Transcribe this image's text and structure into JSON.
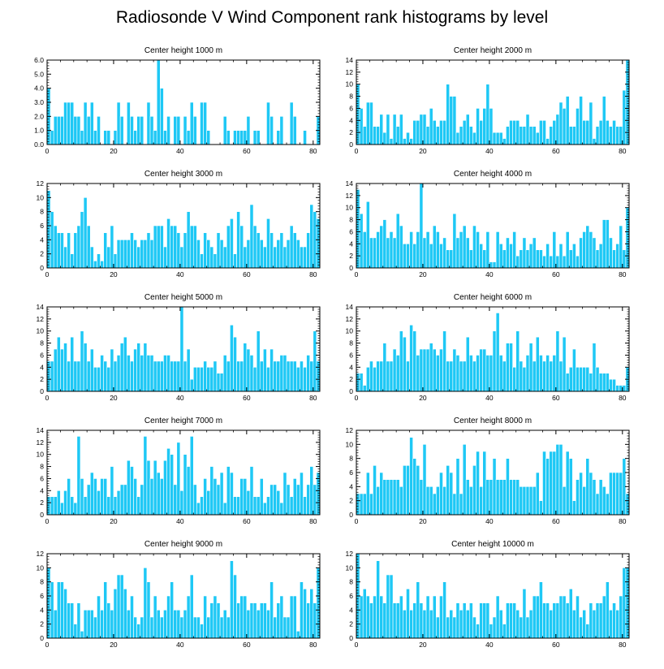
{
  "title": "Radiosonde V Wind Component rank histograms by level",
  "colors": {
    "bar": "#1ec8f5",
    "bar_stroke": "#ffffff",
    "axis": "#000000"
  },
  "chart_data": [
    {
      "type": "bar",
      "title": "Center height 1000 m",
      "xlim": [
        0,
        82
      ],
      "xticks": [
        0,
        20,
        40,
        60,
        80
      ],
      "ylim": [
        0,
        6
      ],
      "yticks": [
        0,
        1,
        2,
        3,
        4,
        5,
        6
      ],
      "ytick_labels": [
        "0.0",
        "1.0",
        "2.0",
        "3.0",
        "4.0",
        "5.0",
        "6.0"
      ],
      "values": [
        4,
        1,
        2,
        2,
        2,
        3,
        3,
        3,
        2,
        2,
        1,
        3,
        2,
        3,
        1,
        2,
        0,
        1,
        1,
        0,
        1,
        3,
        2,
        0,
        3,
        2,
        1,
        2,
        2,
        0,
        3,
        2,
        1,
        6,
        4,
        1,
        2,
        0,
        2,
        2,
        0,
        2,
        1,
        3,
        2,
        0,
        3,
        3,
        1,
        0,
        0,
        0,
        0,
        2,
        1,
        0,
        1,
        1,
        1,
        1,
        2,
        0,
        1,
        1,
        0,
        0,
        3,
        2,
        0,
        1,
        2,
        0,
        0,
        3,
        2,
        0,
        0,
        1,
        0,
        0,
        0,
        2
      ]
    },
    {
      "type": "bar",
      "title": "Center height 2000 m",
      "xlim": [
        0,
        82
      ],
      "xticks": [
        0,
        20,
        40,
        60,
        80
      ],
      "ylim": [
        0,
        14
      ],
      "yticks": [
        0,
        2,
        4,
        6,
        8,
        10,
        12,
        14
      ],
      "ytick_labels": [
        "0",
        "2",
        "4",
        "6",
        "8",
        "10",
        "12",
        "14"
      ],
      "values": [
        10,
        6,
        3,
        7,
        7,
        3,
        3,
        5,
        2,
        5,
        1,
        5,
        3,
        5,
        1,
        2,
        1,
        4,
        4,
        5,
        5,
        3,
        6,
        4,
        3,
        4,
        4,
        10,
        8,
        8,
        2,
        3,
        4,
        5,
        3,
        2,
        6,
        4,
        6,
        10,
        6,
        2,
        2,
        2,
        1,
        3,
        4,
        4,
        4,
        3,
        3,
        5,
        3,
        3,
        2,
        4,
        4,
        1,
        3,
        4,
        5,
        7,
        6,
        8,
        3,
        3,
        6,
        8,
        4,
        4,
        7,
        1,
        3,
        4,
        8,
        4,
        3,
        4,
        3,
        3,
        9,
        14
      ]
    },
    {
      "type": "bar",
      "title": "Center height 3000 m",
      "xlim": [
        0,
        82
      ],
      "xticks": [
        0,
        20,
        40,
        60,
        80
      ],
      "ylim": [
        0,
        12
      ],
      "yticks": [
        0,
        2,
        4,
        6,
        8,
        10,
        12
      ],
      "ytick_labels": [
        "0",
        "2",
        "4",
        "6",
        "8",
        "10",
        "12"
      ],
      "values": [
        11,
        8,
        6,
        5,
        5,
        3,
        5,
        2,
        5,
        6,
        8,
        10,
        6,
        3,
        1,
        2,
        1,
        5,
        3,
        6,
        2,
        4,
        4,
        4,
        4,
        5,
        4,
        3,
        4,
        4,
        5,
        4,
        6,
        6,
        6,
        3,
        7,
        6,
        6,
        5,
        3,
        5,
        8,
        6,
        6,
        4,
        2,
        5,
        4,
        3,
        2,
        5,
        4,
        3,
        6,
        7,
        2,
        8,
        6,
        3,
        4,
        9,
        6,
        5,
        4,
        3,
        7,
        5,
        3,
        4,
        5,
        3,
        4,
        6,
        5,
        4,
        3,
        3,
        5,
        9,
        8,
        7
      ]
    },
    {
      "type": "bar",
      "title": "Center height 4000 m",
      "xlim": [
        0,
        82
      ],
      "xticks": [
        0,
        20,
        40,
        60,
        80
      ],
      "ylim": [
        0,
        14
      ],
      "yticks": [
        0,
        2,
        4,
        6,
        8,
        10,
        12,
        14
      ],
      "ytick_labels": [
        "0",
        "2",
        "4",
        "6",
        "8",
        "10",
        "12",
        "14"
      ],
      "values": [
        13,
        9,
        6,
        11,
        5,
        5,
        6,
        7,
        8,
        5,
        6,
        5,
        9,
        7,
        4,
        4,
        6,
        4,
        6,
        14,
        5,
        6,
        4,
        7,
        6,
        4,
        5,
        3,
        3,
        9,
        5,
        6,
        7,
        5,
        3,
        7,
        6,
        4,
        3,
        6,
        1,
        1,
        6,
        4,
        3,
        5,
        4,
        6,
        2,
        3,
        5,
        3,
        4,
        5,
        3,
        3,
        2,
        4,
        2,
        6,
        2,
        4,
        2,
        6,
        3,
        4,
        2,
        5,
        6,
        7,
        6,
        5,
        3,
        4,
        8,
        8,
        5,
        3,
        4,
        7,
        3,
        10
      ]
    },
    {
      "type": "bar",
      "title": "Center height 5000 m",
      "xlim": [
        0,
        82
      ],
      "xticks": [
        0,
        20,
        40,
        60,
        80
      ],
      "ylim": [
        0,
        14
      ],
      "yticks": [
        0,
        2,
        4,
        6,
        8,
        10,
        12,
        14
      ],
      "ytick_labels": [
        "0",
        "2",
        "4",
        "6",
        "8",
        "10",
        "12",
        "14"
      ],
      "values": [
        5,
        5,
        7,
        9,
        7,
        8,
        5,
        9,
        5,
        5,
        10,
        8,
        5,
        7,
        4,
        4,
        6,
        5,
        4,
        7,
        5,
        6,
        8,
        9,
        6,
        5,
        7,
        8,
        6,
        8,
        6,
        6,
        5,
        5,
        5,
        6,
        6,
        5,
        5,
        5,
        14,
        5,
        7,
        2,
        4,
        4,
        4,
        5,
        4,
        4,
        5,
        3,
        3,
        6,
        5,
        11,
        9,
        5,
        5,
        8,
        7,
        6,
        4,
        10,
        5,
        7,
        4,
        7,
        5,
        5,
        6,
        6,
        5,
        5,
        5,
        4,
        5,
        4,
        6,
        5,
        10,
        5
      ]
    },
    {
      "type": "bar",
      "title": "Center height 6000 m",
      "xlim": [
        0,
        82
      ],
      "xticks": [
        0,
        20,
        40,
        60,
        80
      ],
      "ylim": [
        0,
        14
      ],
      "yticks": [
        0,
        2,
        4,
        6,
        8,
        10,
        12,
        14
      ],
      "ytick_labels": [
        "0",
        "2",
        "4",
        "6",
        "8",
        "10",
        "12",
        "14"
      ],
      "values": [
        3,
        3,
        1,
        4,
        5,
        4,
        5,
        5,
        8,
        5,
        5,
        7,
        6,
        10,
        9,
        5,
        11,
        10,
        6,
        7,
        7,
        7,
        8,
        7,
        6,
        7,
        10,
        5,
        5,
        7,
        6,
        5,
        5,
        9,
        6,
        5,
        6,
        7,
        7,
        6,
        6,
        10,
        13,
        6,
        5,
        8,
        8,
        4,
        10,
        5,
        4,
        6,
        8,
        5,
        9,
        6,
        5,
        6,
        5,
        6,
        10,
        5,
        9,
        3,
        4,
        7,
        4,
        4,
        4,
        4,
        3,
        8,
        4,
        3,
        3,
        3,
        2,
        2,
        1,
        1,
        1,
        4
      ]
    },
    {
      "type": "bar",
      "title": "Center height 7000 m",
      "xlim": [
        0,
        82
      ],
      "xticks": [
        0,
        20,
        40,
        60,
        80
      ],
      "ylim": [
        0,
        14
      ],
      "yticks": [
        0,
        2,
        4,
        6,
        8,
        10,
        12,
        14
      ],
      "ytick_labels": [
        "0",
        "2",
        "4",
        "6",
        "8",
        "10",
        "12",
        "14"
      ],
      "values": [
        3,
        3,
        3,
        4,
        2,
        4,
        6,
        3,
        2,
        13,
        6,
        3,
        5,
        7,
        6,
        4,
        6,
        6,
        3,
        8,
        3,
        4,
        5,
        5,
        9,
        8,
        6,
        3,
        5,
        13,
        9,
        6,
        9,
        7,
        6,
        9,
        11,
        10,
        5,
        12,
        4,
        10,
        8,
        13,
        5,
        2,
        3,
        6,
        4,
        8,
        6,
        5,
        7,
        2,
        8,
        7,
        3,
        3,
        6,
        6,
        4,
        8,
        3,
        3,
        6,
        2,
        3,
        5,
        5,
        4,
        2,
        7,
        5,
        3,
        6,
        5,
        7,
        3,
        5,
        8,
        5,
        7
      ]
    },
    {
      "type": "bar",
      "title": "Center height 8000 m",
      "xlim": [
        0,
        82
      ],
      "xticks": [
        0,
        20,
        40,
        60,
        80
      ],
      "ylim": [
        0,
        12
      ],
      "yticks": [
        0,
        2,
        4,
        6,
        8,
        10,
        12
      ],
      "ytick_labels": [
        "0",
        "2",
        "4",
        "6",
        "8",
        "10",
        "12"
      ],
      "values": [
        3,
        3,
        3,
        6,
        3,
        7,
        4,
        6,
        5,
        5,
        5,
        5,
        5,
        4,
        7,
        7,
        11,
        8,
        7,
        5,
        10,
        4,
        4,
        3,
        4,
        6,
        4,
        7,
        6,
        3,
        8,
        3,
        10,
        5,
        4,
        7,
        9,
        4,
        9,
        5,
        5,
        8,
        5,
        5,
        5,
        8,
        5,
        5,
        5,
        4,
        4,
        4,
        4,
        4,
        6,
        2,
        9,
        8,
        9,
        9,
        10,
        10,
        4,
        9,
        8,
        2,
        5,
        6,
        4,
        8,
        6,
        5,
        3,
        5,
        4,
        3,
        6,
        6,
        6,
        6,
        8,
        3
      ]
    },
    {
      "type": "bar",
      "title": "Center height 9000 m",
      "xlim": [
        0,
        82
      ],
      "xticks": [
        0,
        20,
        40,
        60,
        80
      ],
      "ylim": [
        0,
        12
      ],
      "yticks": [
        0,
        2,
        4,
        6,
        8,
        10,
        12
      ],
      "ytick_labels": [
        "0",
        "2",
        "4",
        "6",
        "8",
        "10",
        "12"
      ],
      "values": [
        10,
        8,
        4,
        8,
        8,
        7,
        5,
        5,
        2,
        5,
        1,
        4,
        4,
        4,
        3,
        6,
        4,
        8,
        5,
        4,
        7,
        9,
        9,
        7,
        4,
        6,
        3,
        2,
        3,
        10,
        8,
        3,
        6,
        4,
        3,
        4,
        6,
        8,
        4,
        4,
        3,
        4,
        6,
        9,
        3,
        3,
        2,
        6,
        3,
        5,
        6,
        5,
        3,
        4,
        3,
        11,
        9,
        5,
        6,
        6,
        4,
        5,
        5,
        4,
        5,
        5,
        4,
        8,
        3,
        5,
        6,
        3,
        3,
        6,
        6,
        1,
        8,
        7,
        5,
        7,
        5,
        10
      ]
    },
    {
      "type": "bar",
      "title": "Center height 10000 m",
      "xlim": [
        0,
        82
      ],
      "xticks": [
        0,
        20,
        40,
        60,
        80
      ],
      "ylim": [
        0,
        12
      ],
      "yticks": [
        0,
        2,
        4,
        6,
        8,
        10,
        12
      ],
      "ytick_labels": [
        "0",
        "2",
        "4",
        "6",
        "8",
        "10",
        "12"
      ],
      "values": [
        12,
        6,
        7,
        6,
        5,
        6,
        11,
        6,
        5,
        9,
        9,
        5,
        5,
        6,
        4,
        7,
        4,
        5,
        8,
        5,
        4,
        6,
        4,
        6,
        3,
        6,
        8,
        3,
        4,
        3,
        5,
        4,
        5,
        4,
        5,
        3,
        2,
        5,
        5,
        5,
        2,
        3,
        6,
        4,
        2,
        5,
        5,
        5,
        4,
        3,
        7,
        3,
        4,
        6,
        6,
        8,
        5,
        5,
        4,
        5,
        5,
        6,
        6,
        5,
        7,
        4,
        6,
        3,
        4,
        2,
        5,
        4,
        5,
        5,
        6,
        8,
        4,
        5,
        4,
        6,
        10,
        10
      ]
    }
  ]
}
